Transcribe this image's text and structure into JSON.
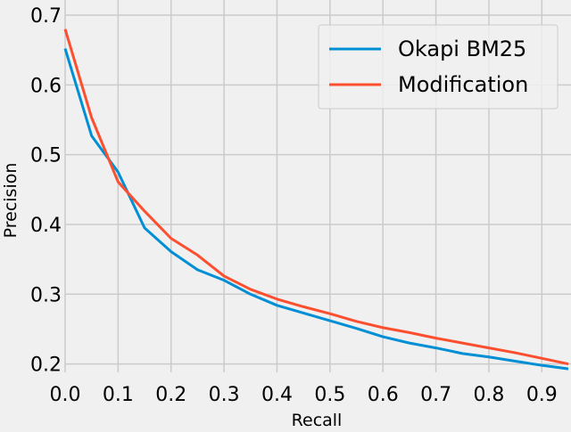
{
  "chart_data": {
    "type": "line",
    "title": "",
    "xlabel": "Recall",
    "ylabel": "Precision",
    "xlim": [
      0.0,
      0.95
    ],
    "ylim": [
      0.188,
      0.7
    ],
    "xticks": [
      0.0,
      0.1,
      0.2,
      0.3,
      0.4,
      0.5,
      0.6,
      0.7,
      0.8,
      0.9
    ],
    "xtick_labels": [
      "0.0",
      "0.1",
      "0.2",
      "0.3",
      "0.4",
      "0.5",
      "0.6",
      "0.7",
      "0.8",
      "0.9"
    ],
    "yticks": [
      0.2,
      0.3,
      0.4,
      0.5,
      0.6,
      0.7
    ],
    "ytick_labels": [
      "0.2",
      "0.3",
      "0.4",
      "0.5",
      "0.6",
      "0.7"
    ],
    "grid": true,
    "legend_position": "top-right",
    "x": [
      0.0,
      0.05,
      0.1,
      0.15,
      0.2,
      0.25,
      0.3,
      0.35,
      0.4,
      0.45,
      0.5,
      0.55,
      0.6,
      0.65,
      0.7,
      0.75,
      0.8,
      0.85,
      0.9,
      0.95
    ],
    "series": [
      {
        "name": "Okapi BM25",
        "color": "#008fd5",
        "values": [
          0.652,
          0.527,
          0.475,
          0.395,
          0.361,
          0.335,
          0.32,
          0.3,
          0.284,
          0.273,
          0.262,
          0.251,
          0.239,
          0.23,
          0.223,
          0.215,
          0.21,
          0.204,
          0.198,
          0.193
        ]
      },
      {
        "name": "Modification",
        "color": "#fc4f30",
        "values": [
          0.68,
          0.553,
          0.461,
          0.419,
          0.38,
          0.356,
          0.326,
          0.307,
          0.293,
          0.282,
          0.272,
          0.261,
          0.252,
          0.245,
          0.237,
          0.23,
          0.223,
          0.216,
          0.208,
          0.2
        ]
      }
    ]
  }
}
